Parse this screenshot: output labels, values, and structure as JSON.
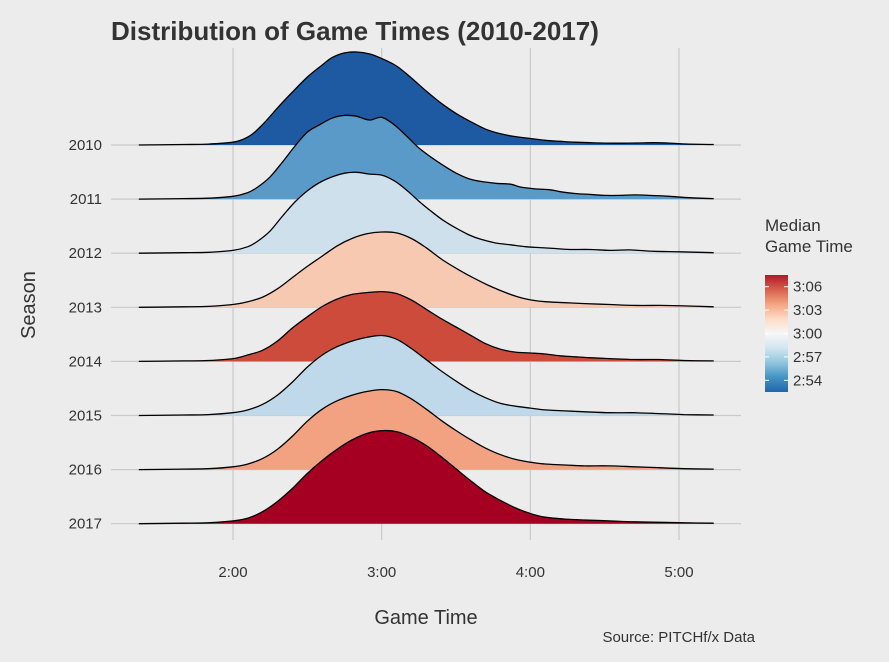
{
  "chart_data": {
    "type": "ridgeline",
    "title": "Distribution of Game Times (2010-2017)",
    "xlabel": "Game Time",
    "ylabel": "Season",
    "caption": "Source: PITCHf/x Data",
    "x_unit": "minutes",
    "xlim": [
      82,
      314
    ],
    "x_ticks": [
      {
        "value": 120,
        "label": "2:00"
      },
      {
        "value": 180,
        "label": "3:00"
      },
      {
        "value": 240,
        "label": "4:00"
      },
      {
        "value": 300,
        "label": "5:00"
      }
    ],
    "grid": true,
    "legend": {
      "title": "Median\nGame Time",
      "placement": "right",
      "type": "colorbar",
      "domain": [
        172.5,
        187.5
      ],
      "colors": [
        "#2166ac",
        "#4393c3",
        "#92c5de",
        "#d1e5f0",
        "#f7f7f7",
        "#fddbc7",
        "#f4a582",
        "#d6604d",
        "#b2182b"
      ],
      "ticks": [
        {
          "value": 174,
          "label": "2:54"
        },
        {
          "value": 177,
          "label": "2:57"
        },
        {
          "value": 180,
          "label": "3:00"
        },
        {
          "value": 183,
          "label": "3:03"
        },
        {
          "value": 186,
          "label": "3:06"
        }
      ]
    },
    "series": [
      {
        "name": "2010",
        "median_minutes": 172.5,
        "fill": "#1d5aa2",
        "points": [
          [
            82,
            0
          ],
          [
            100,
            0.005
          ],
          [
            110,
            0.01
          ],
          [
            120,
            0.03
          ],
          [
            124,
            0.06
          ],
          [
            128,
            0.12
          ],
          [
            133,
            0.25
          ],
          [
            138,
            0.4
          ],
          [
            144,
            0.57
          ],
          [
            150,
            0.73
          ],
          [
            156,
            0.86
          ],
          [
            160,
            0.94
          ],
          [
            165,
            0.99
          ],
          [
            170,
            1.0
          ],
          [
            175,
            0.98
          ],
          [
            180,
            0.93
          ],
          [
            186,
            0.85
          ],
          [
            192,
            0.72
          ],
          [
            198,
            0.58
          ],
          [
            204,
            0.45
          ],
          [
            210,
            0.34
          ],
          [
            216,
            0.25
          ],
          [
            222,
            0.17
          ],
          [
            228,
            0.12
          ],
          [
            234,
            0.09
          ],
          [
            240,
            0.07
          ],
          [
            246,
            0.05
          ],
          [
            252,
            0.04
          ],
          [
            258,
            0.03
          ],
          [
            264,
            0.025
          ],
          [
            270,
            0.02
          ],
          [
            280,
            0.02
          ],
          [
            290,
            0.025
          ],
          [
            296,
            0.02
          ],
          [
            304,
            0.01
          ],
          [
            314,
            0.005
          ]
        ]
      },
      {
        "name": "2011",
        "median_minutes": 173.5,
        "fill": "#5a9ac9",
        "points": [
          [
            82,
            0
          ],
          [
            100,
            0.005
          ],
          [
            110,
            0.01
          ],
          [
            120,
            0.03
          ],
          [
            126,
            0.07
          ],
          [
            130,
            0.13
          ],
          [
            135,
            0.24
          ],
          [
            140,
            0.4
          ],
          [
            145,
            0.57
          ],
          [
            150,
            0.72
          ],
          [
            155,
            0.8
          ],
          [
            160,
            0.87
          ],
          [
            165,
            0.9
          ],
          [
            170,
            0.89
          ],
          [
            175,
            0.85
          ],
          [
            180,
            0.88
          ],
          [
            185,
            0.8
          ],
          [
            190,
            0.68
          ],
          [
            195,
            0.55
          ],
          [
            200,
            0.45
          ],
          [
            205,
            0.36
          ],
          [
            210,
            0.28
          ],
          [
            215,
            0.22
          ],
          [
            220,
            0.19
          ],
          [
            226,
            0.17
          ],
          [
            232,
            0.16
          ],
          [
            236,
            0.13
          ],
          [
            242,
            0.11
          ],
          [
            248,
            0.1
          ],
          [
            252,
            0.08
          ],
          [
            258,
            0.06
          ],
          [
            264,
            0.05
          ],
          [
            270,
            0.04
          ],
          [
            276,
            0.04
          ],
          [
            282,
            0.045
          ],
          [
            288,
            0.04
          ],
          [
            296,
            0.03
          ],
          [
            304,
            0.015
          ],
          [
            314,
            0.005
          ]
        ]
      },
      {
        "name": "2012",
        "median_minutes": 178.5,
        "fill": "#cee0ec",
        "points": [
          [
            82,
            0
          ],
          [
            100,
            0.005
          ],
          [
            110,
            0.01
          ],
          [
            120,
            0.03
          ],
          [
            126,
            0.07
          ],
          [
            130,
            0.13
          ],
          [
            135,
            0.24
          ],
          [
            140,
            0.4
          ],
          [
            145,
            0.55
          ],
          [
            150,
            0.67
          ],
          [
            155,
            0.76
          ],
          [
            160,
            0.82
          ],
          [
            165,
            0.86
          ],
          [
            170,
            0.87
          ],
          [
            175,
            0.85
          ],
          [
            180,
            0.84
          ],
          [
            185,
            0.78
          ],
          [
            190,
            0.68
          ],
          [
            195,
            0.56
          ],
          [
            200,
            0.45
          ],
          [
            205,
            0.35
          ],
          [
            210,
            0.27
          ],
          [
            215,
            0.2
          ],
          [
            220,
            0.15
          ],
          [
            226,
            0.11
          ],
          [
            232,
            0.09
          ],
          [
            238,
            0.07
          ],
          [
            244,
            0.06
          ],
          [
            250,
            0.05
          ],
          [
            256,
            0.04
          ],
          [
            264,
            0.04
          ],
          [
            272,
            0.03
          ],
          [
            280,
            0.035
          ],
          [
            290,
            0.02
          ],
          [
            300,
            0.015
          ],
          [
            314,
            0.005
          ]
        ]
      },
      {
        "name": "2013",
        "median_minutes": 181.5,
        "fill": "#f8c9b1",
        "points": [
          [
            82,
            0
          ],
          [
            100,
            0.005
          ],
          [
            110,
            0.01
          ],
          [
            120,
            0.03
          ],
          [
            126,
            0.06
          ],
          [
            132,
            0.11
          ],
          [
            138,
            0.2
          ],
          [
            144,
            0.32
          ],
          [
            150,
            0.44
          ],
          [
            156,
            0.55
          ],
          [
            162,
            0.66
          ],
          [
            168,
            0.74
          ],
          [
            174,
            0.79
          ],
          [
            180,
            0.81
          ],
          [
            186,
            0.8
          ],
          [
            192,
            0.74
          ],
          [
            198,
            0.64
          ],
          [
            204,
            0.52
          ],
          [
            210,
            0.42
          ],
          [
            216,
            0.33
          ],
          [
            222,
            0.25
          ],
          [
            228,
            0.18
          ],
          [
            234,
            0.12
          ],
          [
            240,
            0.08
          ],
          [
            246,
            0.06
          ],
          [
            254,
            0.05
          ],
          [
            262,
            0.04
          ],
          [
            272,
            0.03
          ],
          [
            282,
            0.02
          ],
          [
            292,
            0.02
          ],
          [
            302,
            0.015
          ],
          [
            314,
            0.005
          ]
        ]
      },
      {
        "name": "2014",
        "median_minutes": 185.0,
        "fill": "#cc4b3a",
        "points": [
          [
            82,
            0
          ],
          [
            100,
            0.005
          ],
          [
            110,
            0.01
          ],
          [
            120,
            0.03
          ],
          [
            126,
            0.07
          ],
          [
            132,
            0.12
          ],
          [
            138,
            0.22
          ],
          [
            144,
            0.36
          ],
          [
            150,
            0.48
          ],
          [
            156,
            0.59
          ],
          [
            162,
            0.67
          ],
          [
            168,
            0.72
          ],
          [
            174,
            0.74
          ],
          [
            180,
            0.75
          ],
          [
            186,
            0.73
          ],
          [
            192,
            0.66
          ],
          [
            198,
            0.56
          ],
          [
            204,
            0.46
          ],
          [
            210,
            0.37
          ],
          [
            216,
            0.28
          ],
          [
            222,
            0.19
          ],
          [
            228,
            0.13
          ],
          [
            234,
            0.1
          ],
          [
            240,
            0.09
          ],
          [
            246,
            0.08
          ],
          [
            252,
            0.06
          ],
          [
            258,
            0.05
          ],
          [
            264,
            0.04
          ],
          [
            272,
            0.03
          ],
          [
            282,
            0.02
          ],
          [
            292,
            0.02
          ],
          [
            302,
            0.01
          ],
          [
            314,
            0.005
          ]
        ]
      },
      {
        "name": "2015",
        "median_minutes": 179.0,
        "fill": "#bfd8ea",
        "points": [
          [
            82,
            0
          ],
          [
            100,
            0.005
          ],
          [
            110,
            0.01
          ],
          [
            120,
            0.03
          ],
          [
            126,
            0.06
          ],
          [
            132,
            0.12
          ],
          [
            138,
            0.22
          ],
          [
            144,
            0.36
          ],
          [
            150,
            0.52
          ],
          [
            156,
            0.65
          ],
          [
            162,
            0.74
          ],
          [
            168,
            0.8
          ],
          [
            174,
            0.84
          ],
          [
            180,
            0.86
          ],
          [
            186,
            0.82
          ],
          [
            192,
            0.72
          ],
          [
            198,
            0.6
          ],
          [
            204,
            0.48
          ],
          [
            210,
            0.37
          ],
          [
            216,
            0.27
          ],
          [
            222,
            0.19
          ],
          [
            228,
            0.13
          ],
          [
            234,
            0.1
          ],
          [
            240,
            0.08
          ],
          [
            246,
            0.06
          ],
          [
            254,
            0.05
          ],
          [
            262,
            0.04
          ],
          [
            272,
            0.03
          ],
          [
            282,
            0.03
          ],
          [
            292,
            0.02
          ],
          [
            302,
            0.01
          ],
          [
            314,
            0.005
          ]
        ]
      },
      {
        "name": "2016",
        "median_minutes": 182.5,
        "fill": "#f2a281",
        "points": [
          [
            82,
            0
          ],
          [
            100,
            0.005
          ],
          [
            110,
            0.01
          ],
          [
            120,
            0.03
          ],
          [
            126,
            0.06
          ],
          [
            132,
            0.12
          ],
          [
            138,
            0.22
          ],
          [
            144,
            0.36
          ],
          [
            150,
            0.52
          ],
          [
            156,
            0.65
          ],
          [
            162,
            0.74
          ],
          [
            168,
            0.8
          ],
          [
            174,
            0.84
          ],
          [
            180,
            0.86
          ],
          [
            186,
            0.84
          ],
          [
            192,
            0.76
          ],
          [
            198,
            0.65
          ],
          [
            204,
            0.53
          ],
          [
            210,
            0.42
          ],
          [
            216,
            0.32
          ],
          [
            222,
            0.23
          ],
          [
            228,
            0.16
          ],
          [
            234,
            0.11
          ],
          [
            240,
            0.08
          ],
          [
            246,
            0.06
          ],
          [
            254,
            0.05
          ],
          [
            262,
            0.04
          ],
          [
            272,
            0.04
          ],
          [
            282,
            0.03
          ],
          [
            292,
            0.02
          ],
          [
            302,
            0.01
          ],
          [
            314,
            0.005
          ]
        ]
      },
      {
        "name": "2017",
        "median_minutes": 187.5,
        "fill": "#a50021",
        "points": [
          [
            82,
            0
          ],
          [
            100,
            0.005
          ],
          [
            110,
            0.01
          ],
          [
            120,
            0.03
          ],
          [
            126,
            0.06
          ],
          [
            132,
            0.13
          ],
          [
            138,
            0.24
          ],
          [
            144,
            0.38
          ],
          [
            150,
            0.54
          ],
          [
            156,
            0.68
          ],
          [
            162,
            0.8
          ],
          [
            168,
            0.9
          ],
          [
            174,
            0.97
          ],
          [
            180,
            1.0
          ],
          [
            186,
            0.99
          ],
          [
            192,
            0.93
          ],
          [
            198,
            0.84
          ],
          [
            204,
            0.72
          ],
          [
            210,
            0.59
          ],
          [
            216,
            0.46
          ],
          [
            222,
            0.34
          ],
          [
            228,
            0.25
          ],
          [
            234,
            0.17
          ],
          [
            240,
            0.11
          ],
          [
            246,
            0.07
          ],
          [
            254,
            0.05
          ],
          [
            262,
            0.04
          ],
          [
            272,
            0.03
          ],
          [
            282,
            0.02
          ],
          [
            292,
            0.015
          ],
          [
            302,
            0.01
          ],
          [
            314,
            0.005
          ]
        ]
      }
    ]
  }
}
